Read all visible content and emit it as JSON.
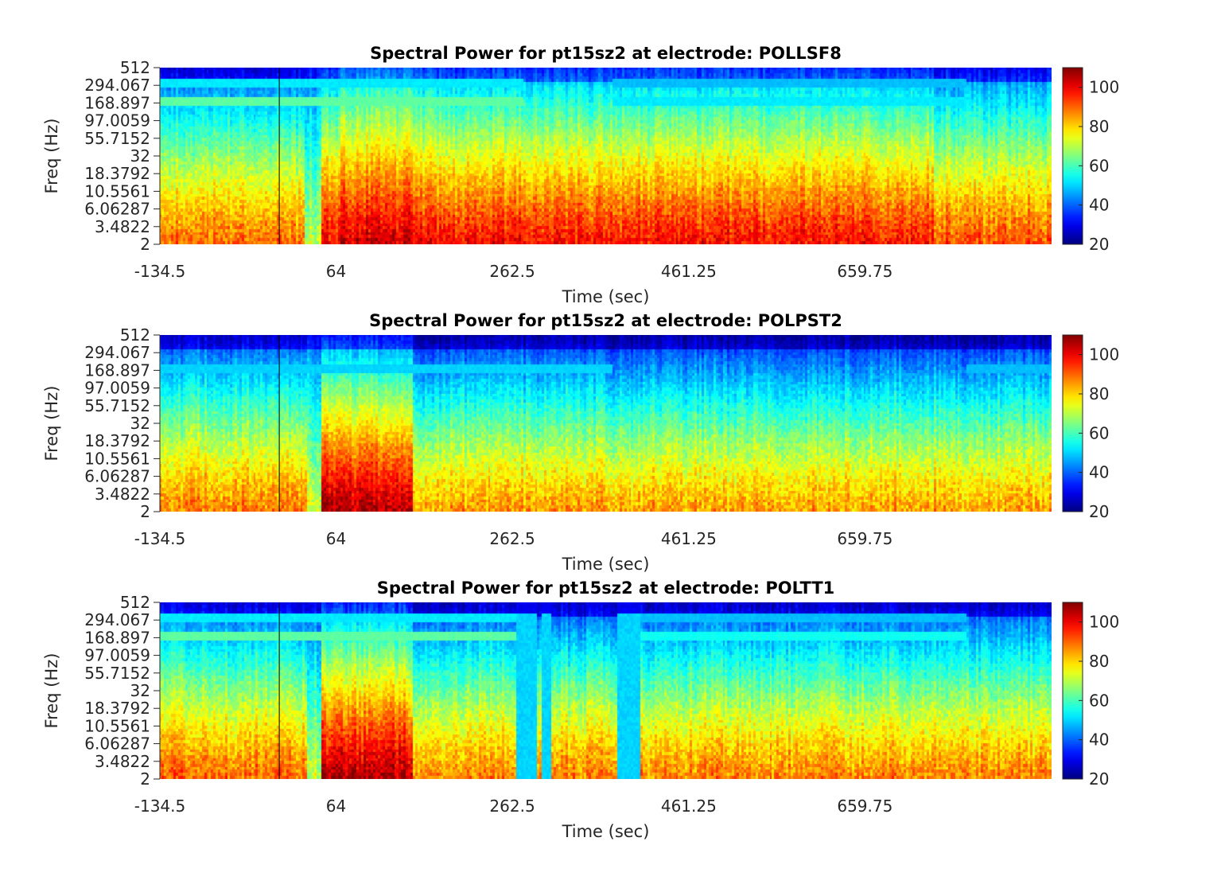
{
  "chart_data": [
    {
      "type": "heatmap",
      "title": "Spectral Power for pt15sz2 at electrode: POLLSF8",
      "xlabel": "Time (sec)",
      "ylabel": "Freq (Hz)",
      "x_ticks": [
        "-134.5",
        "64",
        "262.5",
        "461.25",
        "659.75"
      ],
      "x_tick_values": [
        -134.5,
        64,
        262.5,
        461.25,
        659.75
      ],
      "xlim": [
        -134.5,
        870
      ],
      "y_ticks": [
        "512",
        "294.067",
        "168.897",
        "97.0059",
        "55.7152",
        "32",
        "18.3792",
        "10.5561",
        "6.06287",
        "3.4822",
        "2"
      ],
      "y_scale": "log",
      "ylim": [
        2,
        512
      ],
      "colormap": "jet",
      "clim": [
        20,
        110
      ],
      "colorbar_ticks": [
        "20",
        "40",
        "60",
        "80",
        "100"
      ],
      "seizure_marker_time": 0,
      "segments": [
        {
          "start": -134.5,
          "end": 30,
          "low_power": 90,
          "high_power": 38
        },
        {
          "start": 30,
          "end": 48,
          "low_power": 70,
          "high_power": 42
        },
        {
          "start": 48,
          "end": 66,
          "low_power": 100,
          "high_power": 45
        },
        {
          "start": 66,
          "end": 150,
          "low_power": 103,
          "high_power": 50
        },
        {
          "start": 150,
          "end": 737,
          "low_power": 98,
          "high_power": 45
        },
        {
          "start": 737,
          "end": 870,
          "low_power": 92,
          "high_power": 40
        }
      ],
      "line_noise_bands": [
        {
          "freq": 180,
          "start": -134.5,
          "end": 275,
          "power": 62
        },
        {
          "freq": 300,
          "start": -134.5,
          "end": 275,
          "power": 52
        },
        {
          "freq": 180,
          "start": 375,
          "end": 775,
          "power": 52
        },
        {
          "freq": 300,
          "start": 375,
          "end": 775,
          "power": 48
        }
      ],
      "artifact_columns": []
    },
    {
      "type": "heatmap",
      "title": "Spectral Power for pt15sz2 at electrode: POLPST2",
      "xlabel": "Time (sec)",
      "ylabel": "Freq (Hz)",
      "x_ticks": [
        "-134.5",
        "64",
        "262.5",
        "461.25",
        "659.75"
      ],
      "x_tick_values": [
        -134.5,
        64,
        262.5,
        461.25,
        659.75
      ],
      "xlim": [
        -134.5,
        870
      ],
      "y_ticks": [
        "512",
        "294.067",
        "168.897",
        "97.0059",
        "55.7152",
        "32",
        "18.3792",
        "10.5561",
        "6.06287",
        "3.4822",
        "2"
      ],
      "y_scale": "log",
      "ylim": [
        2,
        512
      ],
      "colormap": "jet",
      "clim": [
        20,
        110
      ],
      "colorbar_ticks": [
        "20",
        "40",
        "60",
        "80",
        "100"
      ],
      "seizure_marker_time": 0,
      "segments": [
        {
          "start": -134.5,
          "end": 32,
          "low_power": 88,
          "high_power": 36
        },
        {
          "start": 32,
          "end": 48,
          "low_power": 72,
          "high_power": 40
        },
        {
          "start": 48,
          "end": 152,
          "low_power": 106,
          "high_power": 42
        },
        {
          "start": 152,
          "end": 870,
          "low_power": 85,
          "high_power": 33
        }
      ],
      "line_noise_bands": [
        {
          "freq": 180,
          "start": -134.5,
          "end": 375,
          "power": 50
        },
        {
          "freq": 180,
          "start": 775,
          "end": 870,
          "power": 48
        }
      ],
      "artifact_columns": []
    },
    {
      "type": "heatmap",
      "title": "Spectral Power for pt15sz2 at electrode: POLTT1",
      "xlabel": "Time (sec)",
      "ylabel": "Freq (Hz)",
      "x_ticks": [
        "-134.5",
        "64",
        "262.5",
        "461.25",
        "659.75"
      ],
      "x_tick_values": [
        -134.5,
        64,
        262.5,
        461.25,
        659.75
      ],
      "xlim": [
        -134.5,
        870
      ],
      "y_ticks": [
        "512",
        "294.067",
        "168.897",
        "97.0059",
        "55.7152",
        "32",
        "18.3792",
        "10.5561",
        "6.06287",
        "3.4822",
        "2"
      ],
      "y_scale": "log",
      "ylim": [
        2,
        512
      ],
      "colormap": "jet",
      "clim": [
        20,
        110
      ],
      "colorbar_ticks": [
        "20",
        "40",
        "60",
        "80",
        "100"
      ],
      "seizure_marker_time": 0,
      "segments": [
        {
          "start": -134.5,
          "end": 32,
          "low_power": 90,
          "high_power": 38
        },
        {
          "start": 32,
          "end": 48,
          "low_power": 72,
          "high_power": 40
        },
        {
          "start": 48,
          "end": 152,
          "low_power": 106,
          "high_power": 44
        },
        {
          "start": 152,
          "end": 870,
          "low_power": 88,
          "high_power": 36
        }
      ],
      "line_noise_bands": [
        {
          "freq": 180,
          "start": -134.5,
          "end": 270,
          "power": 62
        },
        {
          "freq": 300,
          "start": -134.5,
          "end": 270,
          "power": 52
        },
        {
          "freq": 180,
          "start": 405,
          "end": 775,
          "power": 55
        },
        {
          "freq": 300,
          "start": 405,
          "end": 775,
          "power": 48
        }
      ],
      "artifact_columns": [
        {
          "start": 267,
          "end": 290,
          "power": 50
        },
        {
          "start": 296,
          "end": 306,
          "power": 50
        },
        {
          "start": 381,
          "end": 408,
          "power": 50
        }
      ]
    }
  ]
}
